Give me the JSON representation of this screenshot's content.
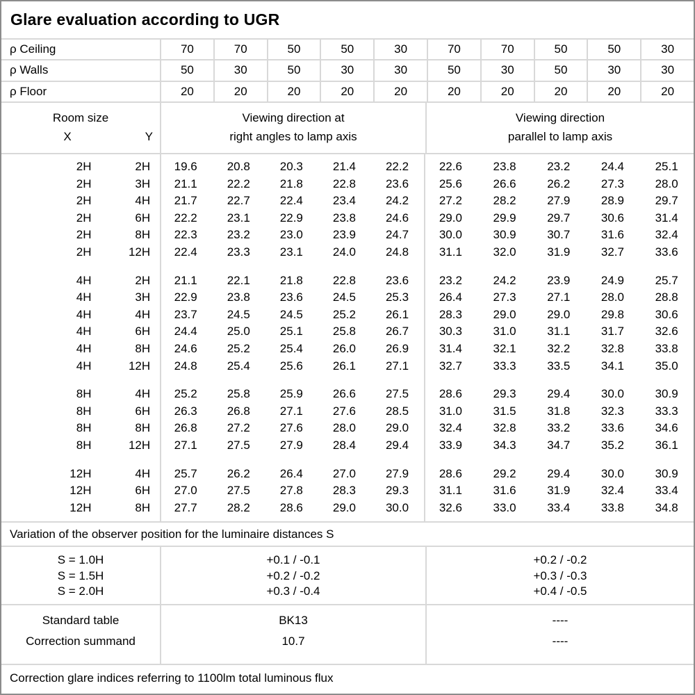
{
  "title": "Glare evaluation according to UGR",
  "reflectance": {
    "rows": [
      [
        "ρ Ceiling",
        "70",
        "70",
        "50",
        "50",
        "30",
        "70",
        "70",
        "50",
        "50",
        "30"
      ],
      [
        "ρ Walls",
        "50",
        "30",
        "50",
        "30",
        "30",
        "50",
        "30",
        "50",
        "30",
        "30"
      ],
      [
        "ρ Floor",
        "20",
        "20",
        "20",
        "20",
        "20",
        "20",
        "20",
        "20",
        "20",
        "20"
      ]
    ]
  },
  "header": {
    "room_size_label": "Room size",
    "x_label": "X",
    "y_label": "Y",
    "perpendicular_line1": "Viewing direction at",
    "perpendicular_line2": "right angles to lamp axis",
    "parallel_line1": "Viewing direction",
    "parallel_line2": "parallel to lamp axis"
  },
  "ugr_table": {
    "blocks": [
      {
        "rows": [
          [
            "2H",
            "2H",
            "19.6",
            "20.8",
            "20.3",
            "21.4",
            "22.2",
            "22.6",
            "23.8",
            "23.2",
            "24.4",
            "25.1"
          ],
          [
            "2H",
            "3H",
            "21.1",
            "22.2",
            "21.8",
            "22.8",
            "23.6",
            "25.6",
            "26.6",
            "26.2",
            "27.3",
            "28.0"
          ],
          [
            "2H",
            "4H",
            "21.7",
            "22.7",
            "22.4",
            "23.4",
            "24.2",
            "27.2",
            "28.2",
            "27.9",
            "28.9",
            "29.7"
          ],
          [
            "2H",
            "6H",
            "22.2",
            "23.1",
            "22.9",
            "23.8",
            "24.6",
            "29.0",
            "29.9",
            "29.7",
            "30.6",
            "31.4"
          ],
          [
            "2H",
            "8H",
            "22.3",
            "23.2",
            "23.0",
            "23.9",
            "24.7",
            "30.0",
            "30.9",
            "30.7",
            "31.6",
            "32.4"
          ],
          [
            "2H",
            "12H",
            "22.4",
            "23.3",
            "23.1",
            "24.0",
            "24.8",
            "31.1",
            "32.0",
            "31.9",
            "32.7",
            "33.6"
          ]
        ]
      },
      {
        "rows": [
          [
            "4H",
            "2H",
            "21.1",
            "22.1",
            "21.8",
            "22.8",
            "23.6",
            "23.2",
            "24.2",
            "23.9",
            "24.9",
            "25.7"
          ],
          [
            "4H",
            "3H",
            "22.9",
            "23.8",
            "23.6",
            "24.5",
            "25.3",
            "26.4",
            "27.3",
            "27.1",
            "28.0",
            "28.8"
          ],
          [
            "4H",
            "4H",
            "23.7",
            "24.5",
            "24.5",
            "25.2",
            "26.1",
            "28.3",
            "29.0",
            "29.0",
            "29.8",
            "30.6"
          ],
          [
            "4H",
            "6H",
            "24.4",
            "25.0",
            "25.1",
            "25.8",
            "26.7",
            "30.3",
            "31.0",
            "31.1",
            "31.7",
            "32.6"
          ],
          [
            "4H",
            "8H",
            "24.6",
            "25.2",
            "25.4",
            "26.0",
            "26.9",
            "31.4",
            "32.1",
            "32.2",
            "32.8",
            "33.8"
          ],
          [
            "4H",
            "12H",
            "24.8",
            "25.4",
            "25.6",
            "26.1",
            "27.1",
            "32.7",
            "33.3",
            "33.5",
            "34.1",
            "35.0"
          ]
        ]
      },
      {
        "rows": [
          [
            "8H",
            "4H",
            "25.2",
            "25.8",
            "25.9",
            "26.6",
            "27.5",
            "28.6",
            "29.3",
            "29.4",
            "30.0",
            "30.9"
          ],
          [
            "8H",
            "6H",
            "26.3",
            "26.8",
            "27.1",
            "27.6",
            "28.5",
            "31.0",
            "31.5",
            "31.8",
            "32.3",
            "33.3"
          ],
          [
            "8H",
            "8H",
            "26.8",
            "27.2",
            "27.6",
            "28.0",
            "29.0",
            "32.4",
            "32.8",
            "33.2",
            "33.6",
            "34.6"
          ],
          [
            "8H",
            "12H",
            "27.1",
            "27.5",
            "27.9",
            "28.4",
            "29.4",
            "33.9",
            "34.3",
            "34.7",
            "35.2",
            "36.1"
          ]
        ]
      },
      {
        "rows": [
          [
            "12H",
            "4H",
            "25.7",
            "26.2",
            "26.4",
            "27.0",
            "27.9",
            "28.6",
            "29.2",
            "29.4",
            "30.0",
            "30.9"
          ],
          [
            "12H",
            "6H",
            "27.0",
            "27.5",
            "27.8",
            "28.3",
            "29.3",
            "31.1",
            "31.6",
            "31.9",
            "32.4",
            "33.4"
          ],
          [
            "12H",
            "8H",
            "27.7",
            "28.2",
            "28.6",
            "29.0",
            "30.0",
            "32.6",
            "33.0",
            "33.4",
            "33.8",
            "34.8"
          ]
        ]
      }
    ]
  },
  "variation_note": "Variation of the observer position for the luminaire distances S",
  "variation": {
    "labels": [
      "S = 1.0H",
      "S = 1.5H",
      "S = 2.0H"
    ],
    "perpendicular": [
      "+0.1 / -0.1",
      "+0.2 / -0.2",
      "+0.3 / -0.4"
    ],
    "parallel": [
      "+0.2 / -0.2",
      "+0.3 / -0.3",
      "+0.4 / -0.5"
    ]
  },
  "summary": {
    "standard_table_label": "Standard table",
    "standard_table_perpendicular": "BK13",
    "standard_table_parallel": "----",
    "correction_summand_label": "Correction summand",
    "correction_summand_perpendicular": "10.7",
    "correction_summand_parallel": "----"
  },
  "footer_note": "Correction glare indices referring to 1100lm total luminous flux",
  "colors": {
    "background": "#ffffff",
    "text": "#000000",
    "border_outer": "#8c8c8c",
    "border_inner": "#d8d8d8"
  }
}
